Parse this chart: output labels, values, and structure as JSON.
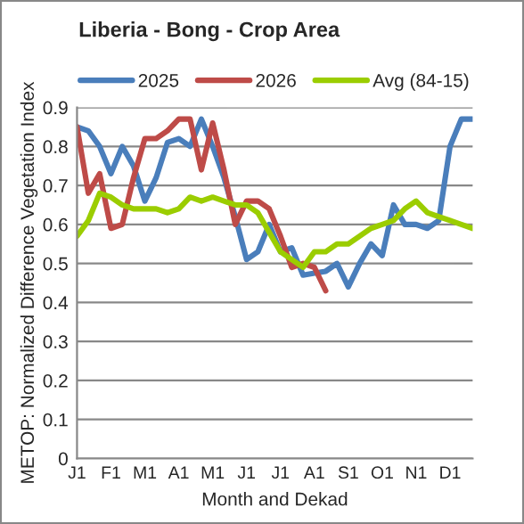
{
  "chart_data": {
    "type": "line",
    "title": "Liberia - Bong - Crop Area",
    "xlabel": "Month and Dekad",
    "ylabel": "METOP: Normalized Difference Vegetation Index",
    "categories": [
      "J1",
      null,
      null,
      "F1",
      null,
      null,
      "M1",
      null,
      null,
      "A1",
      null,
      null,
      "M1",
      null,
      null,
      "J1",
      null,
      null,
      "J1",
      null,
      null,
      "A1",
      null,
      null,
      "S1",
      null,
      null,
      "O1",
      null,
      null,
      "N1",
      null,
      null,
      "D1",
      null,
      null
    ],
    "series": [
      {
        "name": "2025",
        "color": "#4a7ebb",
        "values": [
          0.85,
          0.84,
          0.8,
          0.73,
          0.8,
          0.75,
          0.66,
          0.72,
          0.81,
          0.82,
          0.8,
          0.87,
          0.8,
          0.72,
          0.62,
          0.51,
          0.53,
          0.6,
          0.53,
          0.54,
          0.47,
          0.475,
          0.48,
          0.5,
          0.44,
          0.5,
          0.55,
          0.52,
          0.65,
          0.6,
          0.6,
          0.59,
          0.61,
          0.8,
          0.87,
          0.87
        ]
      },
      {
        "name": "2026",
        "color": "#be4b48",
        "values": [
          0.85,
          0.68,
          0.73,
          0.59,
          0.6,
          0.72,
          0.82,
          0.82,
          0.84,
          0.87,
          0.87,
          0.74,
          0.86,
          0.74,
          0.6,
          0.66,
          0.66,
          0.64,
          0.57,
          0.49,
          0.5,
          0.49,
          0.43,
          null,
          null,
          null,
          null,
          null,
          null,
          null,
          null,
          null,
          null,
          null,
          null,
          null
        ]
      },
      {
        "name": "Avg (84-15)",
        "color": "#9bcd00",
        "values": [
          0.57,
          0.61,
          0.68,
          0.67,
          0.65,
          0.64,
          0.64,
          0.64,
          0.63,
          0.64,
          0.67,
          0.66,
          0.67,
          0.66,
          0.65,
          0.65,
          0.63,
          0.58,
          0.53,
          0.51,
          0.49,
          0.53,
          0.53,
          0.55,
          0.55,
          0.57,
          0.59,
          0.6,
          0.61,
          0.64,
          0.66,
          0.63,
          0.62,
          0.61,
          0.6,
          0.59
        ]
      }
    ],
    "ylim": [
      0,
      0.9
    ],
    "yticks": [
      0,
      0.1,
      0.2,
      0.3,
      0.4,
      0.5,
      0.6,
      0.7,
      0.8,
      0.9
    ],
    "grid": "y",
    "legend": "top",
    "marker": "none",
    "line_style": "solid"
  }
}
